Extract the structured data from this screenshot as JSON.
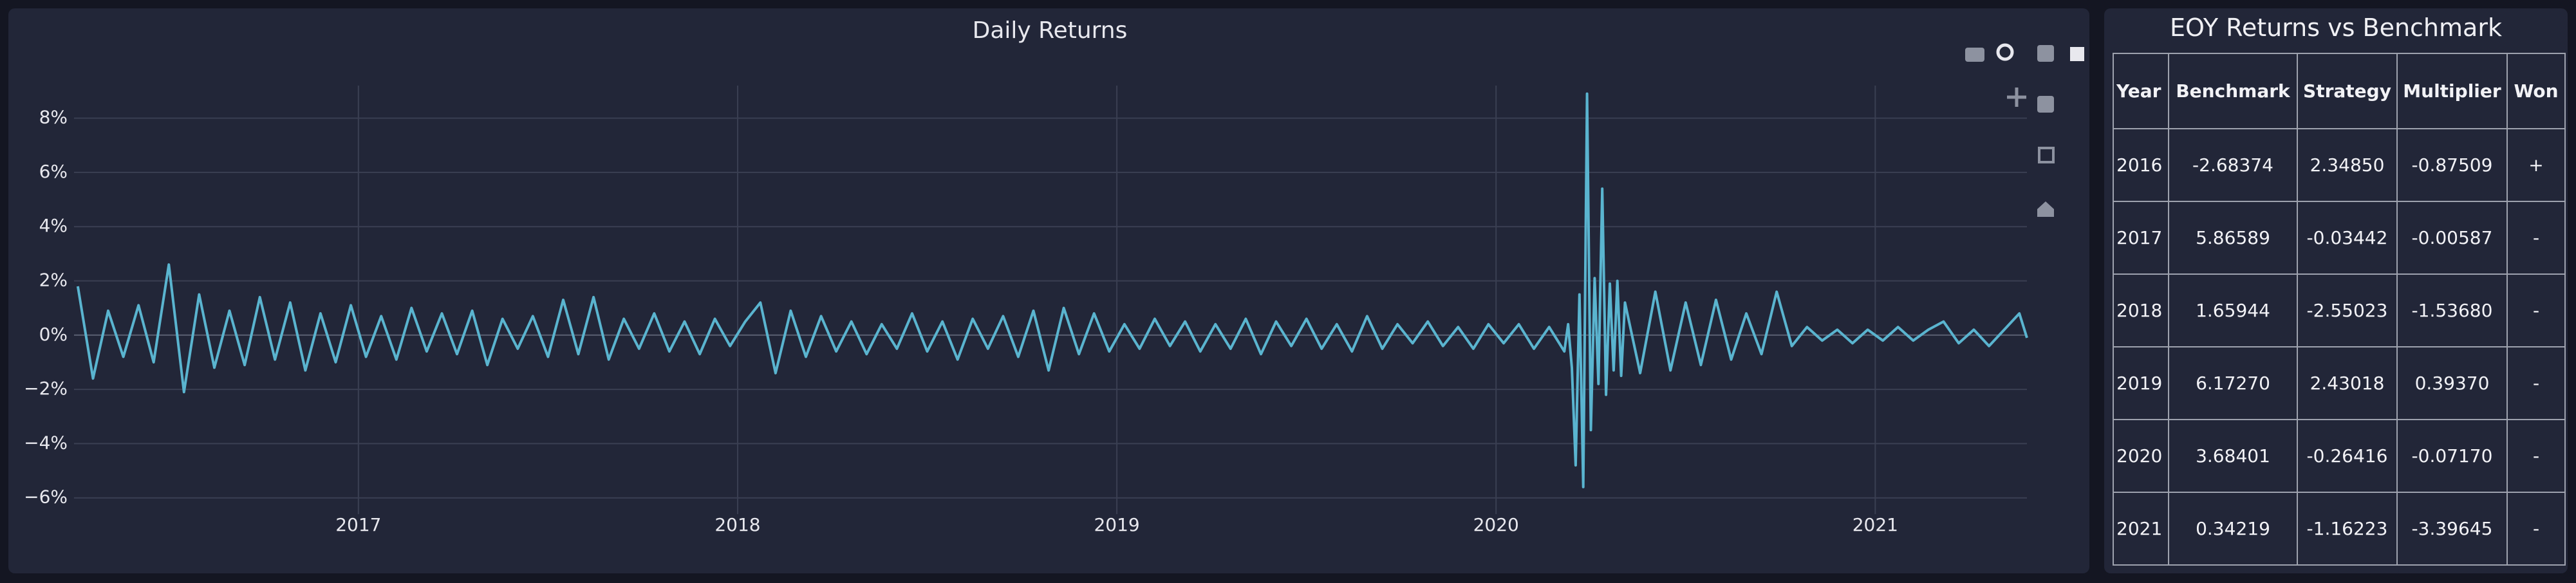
{
  "chart_data": {
    "type": "line",
    "title": "Daily Returns",
    "color": "#5ab4cf",
    "grid": true,
    "xlim": [
      2016.25,
      2021.4
    ],
    "xticks": [
      2017,
      2018,
      2019,
      2020,
      2021
    ],
    "ylim": [
      -6.6,
      9.2
    ],
    "yticks": [
      {
        "value": -6,
        "label": "−6%"
      },
      {
        "value": -4,
        "label": "−4%"
      },
      {
        "value": -2,
        "label": "−2%"
      },
      {
        "value": 0,
        "label": "0%"
      },
      {
        "value": 2,
        "label": "2%"
      },
      {
        "value": 4,
        "label": "4%"
      },
      {
        "value": 6,
        "label": "6%"
      },
      {
        "value": 8,
        "label": "8%"
      }
    ],
    "x": [
      2016.26,
      2016.3,
      2016.34,
      2016.38,
      2016.42,
      2016.46,
      2016.5,
      2016.54,
      2016.58,
      2016.62,
      2016.66,
      2016.7,
      2016.74,
      2016.78,
      2016.82,
      2016.86,
      2016.9,
      2016.94,
      2016.98,
      2017.02,
      2017.06,
      2017.1,
      2017.14,
      2017.18,
      2017.22,
      2017.26,
      2017.3,
      2017.34,
      2017.38,
      2017.42,
      2017.46,
      2017.5,
      2017.54,
      2017.58,
      2017.62,
      2017.66,
      2017.7,
      2017.74,
      2017.78,
      2017.82,
      2017.86,
      2017.9,
      2017.94,
      2017.98,
      2018.02,
      2018.06,
      2018.1,
      2018.14,
      2018.18,
      2018.22,
      2018.26,
      2018.3,
      2018.34,
      2018.38,
      2018.42,
      2018.46,
      2018.5,
      2018.54,
      2018.58,
      2018.62,
      2018.66,
      2018.7,
      2018.74,
      2018.78,
      2018.82,
      2018.86,
      2018.9,
      2018.94,
      2018.98,
      2019.02,
      2019.06,
      2019.1,
      2019.14,
      2019.18,
      2019.22,
      2019.26,
      2019.3,
      2019.34,
      2019.38,
      2019.42,
      2019.46,
      2019.5,
      2019.54,
      2019.58,
      2019.62,
      2019.66,
      2019.7,
      2019.74,
      2019.78,
      2019.82,
      2019.86,
      2019.9,
      2019.94,
      2019.98,
      2020.02,
      2020.06,
      2020.1,
      2020.14,
      2020.18,
      2020.19,
      2020.2,
      2020.21,
      2020.22,
      2020.23,
      2020.24,
      2020.25,
      2020.26,
      2020.27,
      2020.28,
      2020.29,
      2020.3,
      2020.31,
      2020.32,
      2020.33,
      2020.34,
      2020.38,
      2020.42,
      2020.46,
      2020.5,
      2020.54,
      2020.58,
      2020.62,
      2020.66,
      2020.7,
      2020.74,
      2020.78,
      2020.82,
      2020.86,
      2020.9,
      2020.94,
      2020.98,
      2021.02,
      2021.06,
      2021.1,
      2021.14,
      2021.18,
      2021.22,
      2021.26,
      2021.3,
      2021.34,
      2021.38,
      2021.4
    ],
    "values": [
      1.8,
      -1.6,
      0.9,
      -0.8,
      1.1,
      -1.0,
      2.6,
      -2.1,
      1.5,
      -1.2,
      0.9,
      -1.1,
      1.4,
      -0.9,
      1.2,
      -1.3,
      0.8,
      -1.0,
      1.1,
      -0.8,
      0.7,
      -0.9,
      1.0,
      -0.6,
      0.8,
      -0.7,
      0.9,
      -1.1,
      0.6,
      -0.5,
      0.7,
      -0.8,
      1.3,
      -0.7,
      1.4,
      -0.9,
      0.6,
      -0.5,
      0.8,
      -0.6,
      0.5,
      -0.7,
      0.6,
      -0.4,
      0.5,
      1.2,
      -1.4,
      0.9,
      -0.8,
      0.7,
      -0.6,
      0.5,
      -0.7,
      0.4,
      -0.5,
      0.8,
      -0.6,
      0.5,
      -0.9,
      0.6,
      -0.5,
      0.7,
      -0.8,
      0.9,
      -1.3,
      1.0,
      -0.7,
      0.8,
      -0.6,
      0.4,
      -0.5,
      0.6,
      -0.4,
      0.5,
      -0.6,
      0.4,
      -0.5,
      0.6,
      -0.7,
      0.5,
      -0.4,
      0.6,
      -0.5,
      0.4,
      -0.6,
      0.7,
      -0.5,
      0.4,
      -0.3,
      0.5,
      -0.4,
      0.3,
      -0.5,
      0.4,
      -0.3,
      0.4,
      -0.5,
      0.3,
      -0.6,
      0.4,
      -1.2,
      -4.8,
      1.5,
      -5.6,
      8.9,
      -3.5,
      2.1,
      -1.8,
      5.4,
      -2.2,
      1.9,
      -1.3,
      2.0,
      -1.5,
      1.2,
      -1.4,
      1.6,
      -1.3,
      1.2,
      -1.1,
      1.3,
      -0.9,
      0.8,
      -0.7,
      1.6,
      -0.4,
      0.3,
      -0.2,
      0.2,
      -0.3,
      0.2,
      -0.2,
      0.3,
      -0.2,
      0.2,
      0.5,
      -0.3,
      0.2,
      -0.4,
      0.2,
      0.8,
      -0.1
    ]
  },
  "table": {
    "title": "EOY Returns vs Benchmark",
    "columns": [
      "Year",
      "Benchmark",
      "Strategy",
      "Multiplier",
      "Won"
    ],
    "rows": [
      [
        "2016",
        "-2.68374",
        "2.34850",
        "-0.87509",
        "+"
      ],
      [
        "2017",
        "5.86589",
        "-0.03442",
        "-0.00587",
        "-"
      ],
      [
        "2018",
        "1.65944",
        "-2.55023",
        "-1.53680",
        "-"
      ],
      [
        "2019",
        "6.17270",
        "2.43018",
        "0.39370",
        "-"
      ],
      [
        "2020",
        "3.68401",
        "-0.26416",
        "-0.07170",
        "-"
      ],
      [
        "2021",
        "0.34219",
        "-1.16223",
        "-3.39645",
        "-"
      ]
    ]
  }
}
